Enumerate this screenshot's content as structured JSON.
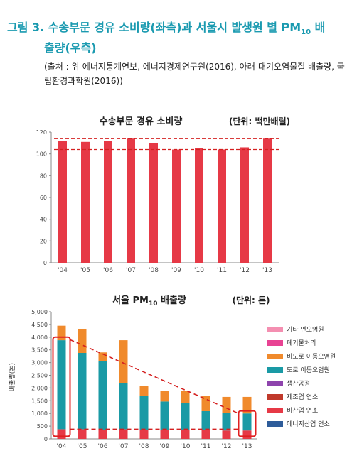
{
  "figure": {
    "title_main": "그림 3. 수송부문 경유 소비량(좌측)과 서울시 발생원 별 PM",
    "title_sub": "10",
    "title_tail": " 배",
    "title_cont": "출량(우측)",
    "source": "(출처 : 위-에너지통계연보, 에너지경제연구원(2016), 아래-대기오염물질 배출량, 국립환경과학원(2016))"
  },
  "colors": {
    "title": "#1a9ab0",
    "bar_red": "#e63946",
    "teal": "#1a9aa5",
    "orange": "#f08a2c",
    "red_outline": "#e02020",
    "dash": "#d42020"
  },
  "chart_data": [
    {
      "type": "bar",
      "title": "수송부문 경유 소비량",
      "unit_label": "(단위: 백만배럴)",
      "categories": [
        "'04",
        "'05",
        "'06",
        "'07",
        "'08",
        "'09",
        "'10",
        "'11",
        "'12",
        "'13"
      ],
      "values": [
        112,
        111,
        112,
        114,
        110,
        104,
        105,
        104,
        106,
        114
      ],
      "ylim": [
        0,
        120
      ],
      "yticks": [
        "0",
        "20",
        "40",
        "60",
        "80",
        "100",
        "120"
      ],
      "reference_lines": [
        114,
        104
      ],
      "grid": false
    },
    {
      "type": "bar",
      "stacked": true,
      "title_main": "서울 PM",
      "title_sub": "10",
      "title_tail": " 배출량",
      "unit_label": "(단위: 톤)",
      "ylabel": "배출량(톤)",
      "categories": [
        "'04",
        "'05",
        "'06",
        "'07",
        "'08",
        "'09",
        "'10",
        "'11",
        "'12",
        "'13"
      ],
      "ylim": [
        0,
        5000
      ],
      "yticks": [
        "0",
        "500",
        "1,000",
        "1,500",
        "2,000",
        "2,500",
        "3,000",
        "3,500",
        "4,000",
        "4,500",
        "5,000"
      ],
      "series": [
        {
          "name": "기타 면오염원",
          "color": "#f48fb1",
          "values": [
            0,
            0,
            0,
            0,
            0,
            0,
            0,
            0,
            0,
            0
          ]
        },
        {
          "name": "폐기물처리",
          "color": "#e84393",
          "values": [
            0,
            0,
            0,
            0,
            0,
            0,
            0,
            0,
            0,
            0
          ]
        },
        {
          "name": "비도로 이동오염원",
          "color": "#f08a2c",
          "values": [
            570,
            950,
            340,
            1700,
            380,
            420,
            490,
            610,
            630,
            650
          ]
        },
        {
          "name": "도로 이동오염원",
          "color": "#1a9aa5",
          "values": [
            3500,
            3000,
            2700,
            1800,
            1350,
            1120,
            1050,
            750,
            690,
            670
          ]
        },
        {
          "name": "생산공정",
          "color": "#8e44ad",
          "values": [
            0,
            0,
            0,
            0,
            0,
            0,
            0,
            0,
            0,
            0
          ]
        },
        {
          "name": "제조업 연소",
          "color": "#c0392b",
          "values": [
            0,
            0,
            0,
            0,
            0,
            0,
            0,
            0,
            0,
            0
          ]
        },
        {
          "name": "비산업 연소",
          "color": "#e63946",
          "values": [
            380,
            380,
            360,
            380,
            350,
            350,
            350,
            340,
            330,
            330
          ]
        },
        {
          "name": "에너지산업 연소",
          "color": "#2e5c9a",
          "values": [
            0,
            0,
            0,
            0,
            0,
            0,
            0,
            0,
            0,
            0
          ]
        }
      ],
      "highlight_boxes": [
        "'04",
        "'13"
      ],
      "trend_line": {
        "from": "'04",
        "to": "'13",
        "values": [
          3900,
          1000
        ]
      },
      "baseline_line": 380
    }
  ]
}
